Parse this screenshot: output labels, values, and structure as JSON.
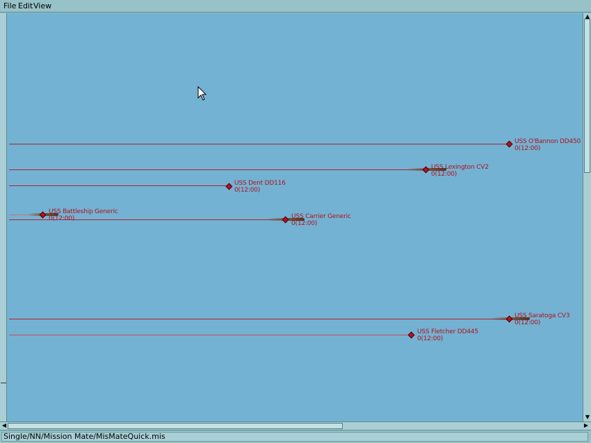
{
  "menu": {
    "file": "File",
    "edit": "Edit",
    "view": "View"
  },
  "statusbar": {
    "path": "Single/NN/Mission Mate/MisMateQuick.mis"
  },
  "units": [
    {
      "name": "USS O'Bannon DD450",
      "time": "0(12:00)"
    },
    {
      "name": "USS Lexington CV2",
      "time": "0(12:00)"
    },
    {
      "name": "USS Dent DD116",
      "time": "0(12:00)"
    },
    {
      "name": "USS Battleship Generic",
      "time": "0(12:00)"
    },
    {
      "name": "USS Carrier Generic",
      "time": "0(12:00)"
    },
    {
      "name": "USS Saratoga CV3",
      "time": "0(12:00)"
    },
    {
      "name": "USS Fletcher DD445",
      "time": "0(12:00)"
    }
  ],
  "icons": {
    "cursor": "mouse-pointer-icon",
    "scroll_up": "arrow-up-icon",
    "scroll_down": "arrow-down-icon",
    "scroll_left": "arrow-left-icon",
    "scroll_right": "arrow-right-icon"
  },
  "colors": {
    "sea": "#73b2d2",
    "unit": "#b3101e"
  }
}
